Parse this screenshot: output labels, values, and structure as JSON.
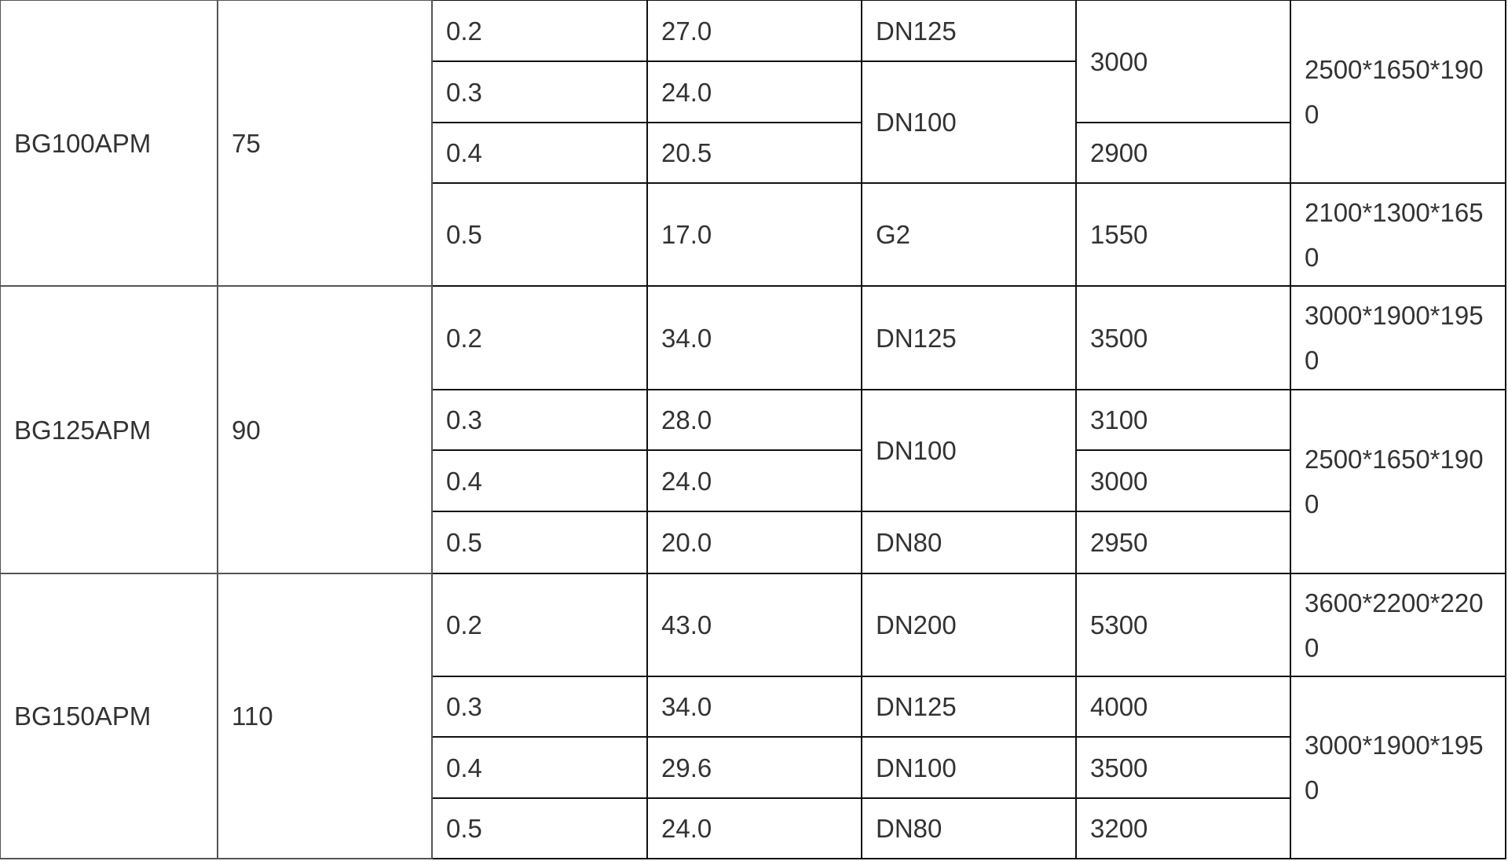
{
  "table": {
    "rows": [
      {
        "h": 78,
        "cells": [
          {
            "t": "BG100APM",
            "rs": 4,
            "c": 0
          },
          {
            "t": "75",
            "rs": 4,
            "c": 1
          },
          {
            "t": "0.2"
          },
          {
            "t": "27.0"
          },
          {
            "t": "DN125"
          },
          {
            "t": "3000",
            "rs": 2
          },
          {
            "t": "2500*1650*1900",
            "rs": 3
          }
        ]
      },
      {
        "h": 78,
        "cells": [
          {
            "t": "0.3"
          },
          {
            "t": "24.0"
          },
          {
            "t": "DN100",
            "rs": 2
          }
        ]
      },
      {
        "h": 77,
        "cells": [
          {
            "t": "0.4"
          },
          {
            "t": "20.5"
          },
          {
            "t": "2900"
          }
        ]
      },
      {
        "h": 131,
        "cells": [
          {
            "t": "0.5"
          },
          {
            "t": "17.0"
          },
          {
            "t": "G2"
          },
          {
            "t": "1550"
          },
          {
            "t": "2100*1300*1650"
          }
        ]
      },
      {
        "h": 132,
        "cells": [
          {
            "t": "BG125APM",
            "rs": 4,
            "c": 0
          },
          {
            "t": "90",
            "rs": 4,
            "c": 1
          },
          {
            "t": "0.2"
          },
          {
            "t": "34.0"
          },
          {
            "t": "DN125"
          },
          {
            "t": "3500"
          },
          {
            "t": "3000*1900*1950"
          }
        ]
      },
      {
        "h": 77,
        "cells": [
          {
            "t": "0.3"
          },
          {
            "t": "28.0"
          },
          {
            "t": "DN100",
            "rs": 2
          },
          {
            "t": "3100"
          },
          {
            "t": "2500*1650*1900",
            "rs": 3
          }
        ]
      },
      {
        "h": 78,
        "cells": [
          {
            "t": "0.4"
          },
          {
            "t": "24.0"
          },
          {
            "t": "3000"
          }
        ]
      },
      {
        "h": 79,
        "cells": [
          {
            "t": "0.5"
          },
          {
            "t": "20.0"
          },
          {
            "t": "DN80"
          },
          {
            "t": "2950"
          }
        ]
      },
      {
        "h": 131,
        "cells": [
          {
            "t": "BG150APM",
            "rs": 4,
            "c": 0
          },
          {
            "t": "110",
            "rs": 4,
            "c": 1
          },
          {
            "t": "0.2"
          },
          {
            "t": "43.0"
          },
          {
            "t": "DN200"
          },
          {
            "t": "5300"
          },
          {
            "t": "3600*2200*2200"
          }
        ]
      },
      {
        "h": 77,
        "cells": [
          {
            "t": "0.3"
          },
          {
            "t": "34.0"
          },
          {
            "t": "DN125"
          },
          {
            "t": "4000"
          },
          {
            "t": "3000*1900*1950",
            "rs": 3
          }
        ]
      },
      {
        "h": 78,
        "cells": [
          {
            "t": "0.4"
          },
          {
            "t": "29.6"
          },
          {
            "t": "DN100"
          },
          {
            "t": "3500"
          }
        ]
      },
      {
        "h": 77,
        "cells": [
          {
            "t": "0.5"
          },
          {
            "t": "24.0"
          },
          {
            "t": "DN80"
          },
          {
            "t": "3200"
          }
        ]
      }
    ]
  }
}
